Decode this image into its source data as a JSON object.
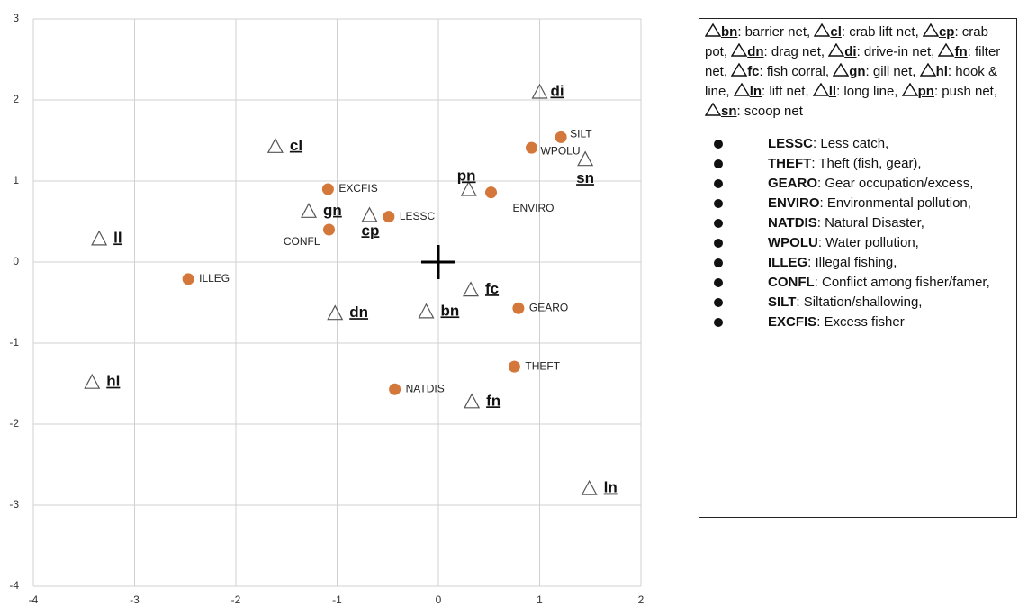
{
  "chart_data": {
    "type": "scatter",
    "xlim": [
      -4,
      2
    ],
    "ylim": [
      -4,
      3
    ],
    "xticks": [
      -4,
      -3,
      -2,
      -1,
      0,
      1,
      2
    ],
    "yticks": [
      -4,
      -3,
      -2,
      -1,
      0,
      1,
      2,
      3
    ],
    "grid": true,
    "series": [
      {
        "marker": "circle",
        "color": "#d4773a",
        "labels": [
          "SILT",
          "WPOLU",
          "EXCFIS",
          "ENVIRO",
          "LESSC",
          "CONFL",
          "ILLEG",
          "GEARO",
          "THEFT",
          "NATDIS"
        ],
        "x": [
          1.21,
          0.92,
          -1.09,
          0.52,
          -0.49,
          -1.08,
          -2.47,
          0.79,
          0.75,
          -0.43
        ],
        "values": [
          1.54,
          1.41,
          0.9,
          0.86,
          0.56,
          0.4,
          -0.21,
          -0.57,
          -1.29,
          -1.57
        ]
      },
      {
        "marker": "triangle",
        "color": "#555555",
        "labels": [
          "di",
          "cl",
          "sn",
          "pn",
          "gn",
          "cp",
          "ll",
          "fc",
          "dn",
          "bn",
          "hl",
          "fn",
          "ln"
        ],
        "x": [
          1.0,
          -1.61,
          1.45,
          0.3,
          -1.28,
          -0.68,
          -3.35,
          0.32,
          -1.02,
          -0.12,
          -3.42,
          0.33,
          1.49
        ],
        "values": [
          2.1,
          1.43,
          1.27,
          0.9,
          0.63,
          0.58,
          0.29,
          -0.34,
          -0.63,
          -0.61,
          -1.48,
          -1.72,
          -2.79
        ]
      }
    ],
    "legend": {
      "gear": [
        {
          "code": "bn",
          "text": ": barrier net, "
        },
        {
          "code": "cl",
          "text": ": crab lift net, "
        },
        {
          "code": "cp",
          "text": ": crab pot, "
        },
        {
          "code": "dn",
          "text": ": drag net, "
        },
        {
          "code": "di",
          "text": ": drive-in net, "
        },
        {
          "code": "fn",
          "text": ": filter net, "
        },
        {
          "code": "fc",
          "text": ": fish corral, "
        },
        {
          "code": "gn",
          "text": ": gill net, "
        },
        {
          "code": "hl",
          "text": ": hook & line, "
        },
        {
          "code": "ln",
          "text": ": lift net, "
        },
        {
          "code": "ll",
          "text": ": long line, "
        },
        {
          "code": "pn",
          "text": ": push net, "
        },
        {
          "code": "sn",
          "text": ": scoop net"
        }
      ],
      "issues": [
        {
          "code": "LESSC",
          "text": ": Less catch,"
        },
        {
          "code": "THEFT",
          "text": ": Theft (fish, gear),"
        },
        {
          "code": "GEARO",
          "text": ": Gear occupation/excess,"
        },
        {
          "code": "ENVIRO",
          "text": ": Environmental pollution,"
        },
        {
          "code": "NATDIS",
          "text": ": Natural Disaster,"
        },
        {
          "code": "WPOLU",
          "text": ": Water pollution,"
        },
        {
          "code": "ILLEG",
          "text": ": Illegal fishing,"
        },
        {
          "code": "CONFL",
          "text": ": Conflict among fisher/famer,"
        },
        {
          "code": "SILT",
          "text": ": Siltation/shallowing,"
        },
        {
          "code": "EXCFIS",
          "text": ": Excess fisher"
        }
      ]
    }
  }
}
